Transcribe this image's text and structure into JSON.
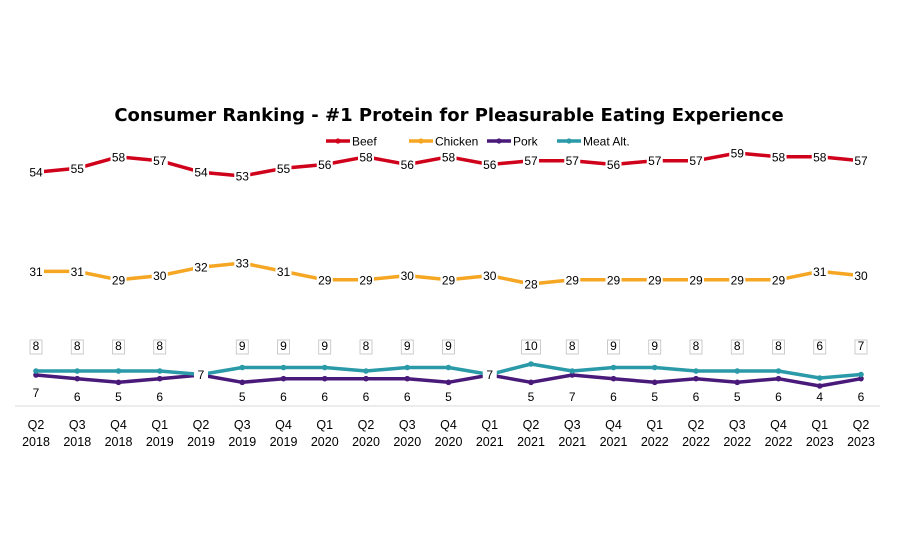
{
  "chart_data": {
    "type": "line",
    "title": "Consumer Ranking - #1 Protein for Pleasurable Eating Experience",
    "legend_position": "top",
    "grid": false,
    "categories": [
      [
        "Q2",
        "2018"
      ],
      [
        "Q3",
        "2018"
      ],
      [
        "Q4",
        "2018"
      ],
      [
        "Q1",
        "2019"
      ],
      [
        "Q2",
        "2019"
      ],
      [
        "Q3",
        "2019"
      ],
      [
        "Q4",
        "2019"
      ],
      [
        "Q1",
        "2020"
      ],
      [
        "Q2",
        "2020"
      ],
      [
        "Q3",
        "2020"
      ],
      [
        "Q4",
        "2020"
      ],
      [
        "Q1",
        "2021"
      ],
      [
        "Q2",
        "2021"
      ],
      [
        "Q3",
        "2021"
      ],
      [
        "Q4",
        "2021"
      ],
      [
        "Q1",
        "2022"
      ],
      [
        "Q2",
        "2022"
      ],
      [
        "Q3",
        "2022"
      ],
      [
        "Q4",
        "2022"
      ],
      [
        "Q1",
        "2023"
      ],
      [
        "Q2",
        "2023"
      ]
    ],
    "series": [
      {
        "name": "Beef",
        "color": "#d0021b",
        "values": [
          54,
          55,
          58,
          57,
          54,
          53,
          55,
          56,
          58,
          56,
          58,
          56,
          57,
          57,
          56,
          57,
          57,
          59,
          58,
          58,
          57
        ]
      },
      {
        "name": "Chicken",
        "color": "#f5a623",
        "values": [
          31,
          31,
          29,
          30,
          32,
          33,
          31,
          29,
          29,
          30,
          29,
          30,
          28,
          29,
          29,
          29,
          29,
          29,
          29,
          31,
          30
        ]
      },
      {
        "name": "Pork",
        "color": "#4a1a7a",
        "values": [
          7,
          6,
          5,
          6,
          7,
          5,
          6,
          6,
          6,
          6,
          5,
          7,
          5,
          7,
          6,
          5,
          6,
          5,
          6,
          4,
          6
        ]
      },
      {
        "name": "Meat Alt.",
        "color": "#2a9aa8",
        "values": [
          8,
          8,
          8,
          8,
          7,
          9,
          9,
          9,
          8,
          9,
          9,
          7,
          10,
          8,
          9,
          9,
          8,
          8,
          8,
          6,
          7
        ]
      }
    ]
  }
}
